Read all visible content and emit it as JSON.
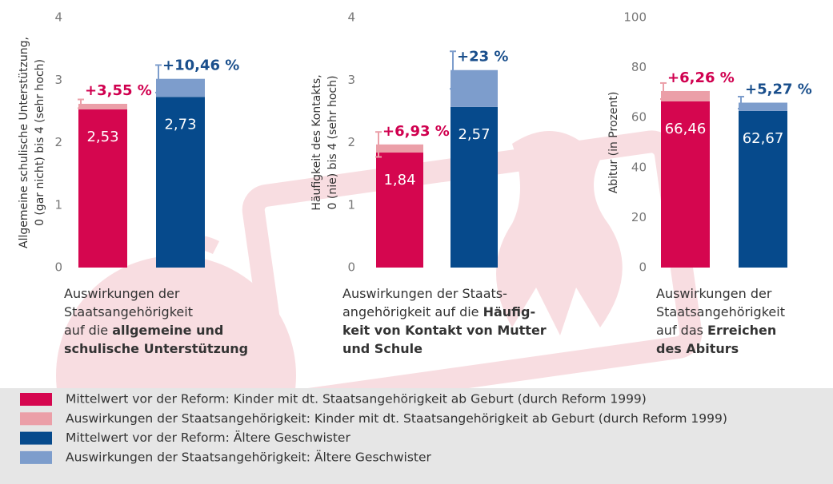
{
  "chart_data": [
    {
      "type": "bar",
      "y_label": [
        "Allgemeine schulische Unterstützung,",
        "0 (gar nicht) bis 4 (sehr hoch)"
      ],
      "ylim": [
        0,
        4
      ],
      "yticks": [
        0,
        1,
        2,
        3,
        4
      ],
      "categories": [
        null,
        null
      ],
      "bars": [
        {
          "base": 2.53,
          "base_label": "2,53",
          "increase": 0.09,
          "increase_label": "+3,55 %",
          "error": 0.07
        },
        {
          "base": 2.73,
          "base_label": "2,73",
          "increase": 0.29,
          "increase_label": "+10,46 %",
          "error": 0.22
        }
      ],
      "caption": [
        [
          {
            "text": "Auswirkungen der",
            "bold": false
          }
        ],
        [
          {
            "text": "Staatsangehörigkeit",
            "bold": false
          }
        ],
        [
          {
            "text": "auf die ",
            "bold": false
          },
          {
            "text": "allgemeine und",
            "bold": true
          }
        ],
        [
          {
            "text": "schulische Unterstützung",
            "bold": true
          }
        ]
      ]
    },
    {
      "type": "bar",
      "y_label": [
        "Häufigkeit des Kontakts,",
        "0 (nie) bis 4 (sehr hoch)"
      ],
      "ylim": [
        0,
        4
      ],
      "yticks": [
        0,
        1,
        2,
        3,
        4
      ],
      "categories": [
        null,
        null
      ],
      "bars": [
        {
          "base": 1.84,
          "base_label": "1,84",
          "increase": 0.13,
          "increase_label": "+6,93 %",
          "error": 0.2
        },
        {
          "base": 2.57,
          "base_label": "2,57",
          "increase": 0.59,
          "increase_label": "+23 %",
          "error": 0.3
        }
      ],
      "caption": [
        [
          {
            "text": "Auswirkungen der Staats-",
            "bold": false
          }
        ],
        [
          {
            "text": "angehörigkeit auf die ",
            "bold": false
          },
          {
            "text": "Häufig-",
            "bold": true
          }
        ],
        [
          {
            "text": "keit von Kontakt von Mutter",
            "bold": true
          }
        ],
        [
          {
            "text": "und Schule",
            "bold": true
          }
        ]
      ]
    },
    {
      "type": "bar",
      "y_label": [
        "Abitur (in Prozent)"
      ],
      "ylim": [
        0,
        100
      ],
      "yticks": [
        0,
        20,
        40,
        60,
        80,
        100
      ],
      "categories": [
        null,
        null
      ],
      "bars": [
        {
          "base": 66.46,
          "base_label": "66,46",
          "increase": 4.16,
          "increase_label": "+6,26 %",
          "error": 3.2
        },
        {
          "base": 62.67,
          "base_label": "62,67",
          "increase": 3.3,
          "increase_label": "+5,27 %",
          "error": 2.4
        }
      ],
      "caption": [
        [
          {
            "text": "Auswirkungen der",
            "bold": false
          }
        ],
        [
          {
            "text": "Staatsangehörigkeit",
            "bold": false
          }
        ],
        [
          {
            "text": "auf das ",
            "bold": false
          },
          {
            "text": "Erreichen",
            "bold": true
          }
        ],
        [
          {
            "text": "des Abiturs",
            "bold": true
          }
        ]
      ]
    }
  ],
  "legend": [
    {
      "name": "Mittelwert vor der Reform: Kinder mit dt. Staatsangehörigkeit ab Geburt (durch Reform 1999)",
      "color": "#d5064f"
    },
    {
      "name": "Auswirkungen der Staatsangehörigkeit: Kinder mit dt. Staatsangehörigkeit ab Geburt (durch Reform 1999)",
      "color": "#eb9fa8"
    },
    {
      "name": "Mittelwert vor der Reform: Ältere Geschwister",
      "color": "#064a8c"
    },
    {
      "name": "Auswirkungen der Staatsangehörigkeit: Ältere Geschwister",
      "color": "#7d9dcc"
    }
  ]
}
